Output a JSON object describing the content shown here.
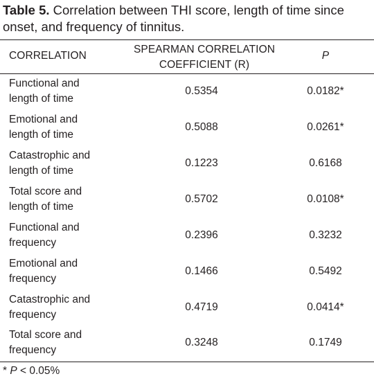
{
  "caption": {
    "label": "Table 5.",
    "text": " Correlation between THI score, length of time since onset, and frequency of tinnitus."
  },
  "headers": {
    "correlation": "CORRELATION",
    "coefficient_line1": "SPEARMAN CORRELATION",
    "coefficient_line2": "COEFFICIENT (R)",
    "p": "P"
  },
  "rows": [
    {
      "label_line1": "Functional and",
      "label_line2": "length of time",
      "r": "0.5354",
      "p": "0.0182*"
    },
    {
      "label_line1": "Emotional and",
      "label_line2": "length of time",
      "r": "0.5088",
      "p": "0.0261*"
    },
    {
      "label_line1": "Catastrophic and",
      "label_line2": "length of time",
      "r": "0.1223",
      "p": "0.6168"
    },
    {
      "label_line1": "Total score and",
      "label_line2": "length of time",
      "r": "0.5702",
      "p": "0.0108*"
    },
    {
      "label_line1": "Functional and",
      "label_line2": "frequency",
      "r": "0.2396",
      "p": "0.3232"
    },
    {
      "label_line1": "Emotional and",
      "label_line2": "frequency",
      "r": "0.1466",
      "p": "0.5492"
    },
    {
      "label_line1": "Catastrophic and",
      "label_line2": "frequency",
      "r": "0.4719",
      "p": "0.0414*"
    },
    {
      "label_line1": "Total score and",
      "label_line2": "frequency",
      "r": "0.3248",
      "p": "0.1749"
    }
  ],
  "footnote": {
    "star": "* ",
    "p": "P",
    "rest": " < 0.05%"
  }
}
